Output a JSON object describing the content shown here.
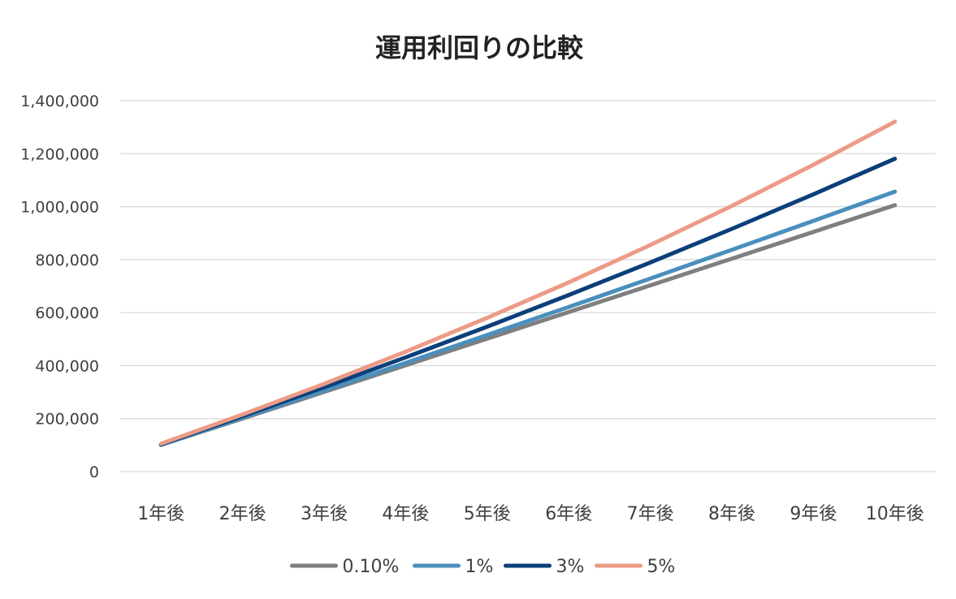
{
  "chart_data": {
    "type": "line",
    "title": "運用利回りの比較",
    "xlabel": "",
    "ylabel": "",
    "categories": [
      "1年後",
      "2年後",
      "3年後",
      "4年後",
      "5年後",
      "6年後",
      "7年後",
      "8年後",
      "9年後",
      "10年後"
    ],
    "ylim": [
      0,
      1400000
    ],
    "yticks": [
      0,
      200000,
      400000,
      600000,
      800000,
      1000000,
      1200000,
      1400000
    ],
    "ytick_labels": [
      "0",
      "200,000",
      "400,000",
      "600,000",
      "800,000",
      "1,000,000",
      "1,200,000",
      "1,400,000"
    ],
    "grid": true,
    "legend_position": "bottom",
    "series": [
      {
        "name": "0.10%",
        "color": "#7f7f7f",
        "values": [
          100100,
          200300,
          300600,
          401000,
          501500,
          602100,
          702800,
          803600,
          904500,
          1005500
        ]
      },
      {
        "name": "1%",
        "color": "#4a8fbd",
        "values": [
          101000,
          203000,
          306100,
          410100,
          515200,
          621400,
          728600,
          836900,
          946300,
          1056700
        ]
      },
      {
        "name": "3%",
        "color": "#0b3f7a",
        "values": [
          103000,
          209100,
          318400,
          430900,
          546800,
          666200,
          789200,
          915900,
          1046400,
          1180800
        ]
      },
      {
        "name": "5%",
        "color": "#ec9b86",
        "values": [
          105000,
          215300,
          331000,
          452600,
          580200,
          714200,
          855000,
          1002700,
          1157900,
          1320700
        ]
      }
    ]
  }
}
